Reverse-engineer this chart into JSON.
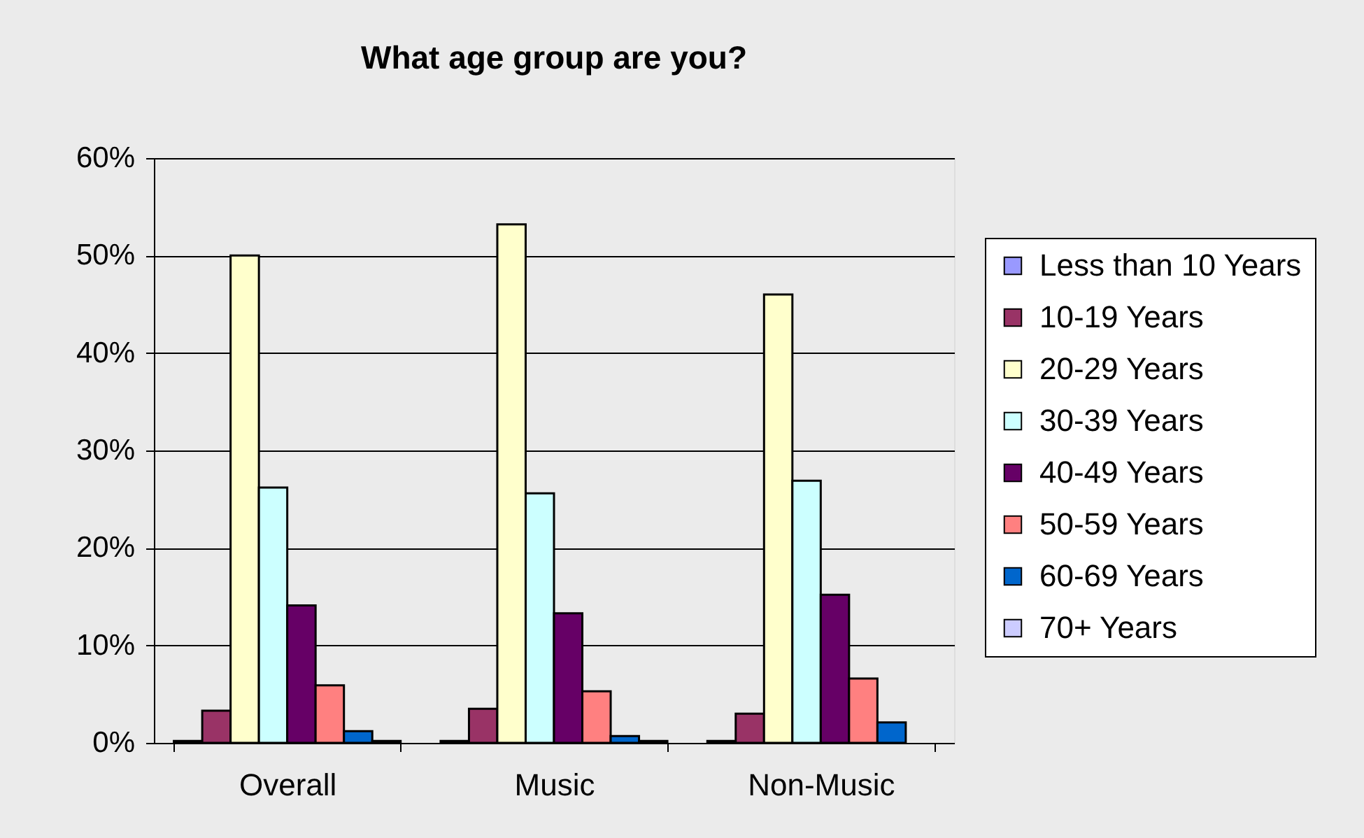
{
  "chart_data": {
    "type": "bar",
    "title": "What age group are you?",
    "categories": [
      "Overall",
      "Music",
      "Non-Music"
    ],
    "series": [
      {
        "name": "Less than 10 Years",
        "color": "#9999ff",
        "values": [
          0.2,
          0.2,
          0.2
        ]
      },
      {
        "name": "10-19 Years",
        "color": "#993366",
        "values": [
          3.3,
          3.5,
          3.0
        ]
      },
      {
        "name": "20-29 Years",
        "color": "#ffffcc",
        "values": [
          50.0,
          53.2,
          46.0
        ]
      },
      {
        "name": "30-39 Years",
        "color": "#ccffff",
        "values": [
          26.2,
          25.6,
          26.9
        ]
      },
      {
        "name": "40-49 Years",
        "color": "#660066",
        "values": [
          14.1,
          13.3,
          15.2
        ]
      },
      {
        "name": "50-59 Years",
        "color": "#ff8080",
        "values": [
          5.9,
          5.3,
          6.6
        ]
      },
      {
        "name": "60-69 Years",
        "color": "#0066cc",
        "values": [
          1.2,
          0.7,
          2.1
        ]
      },
      {
        "name": "70+   Years",
        "color": "#ccccff",
        "values": [
          0.2,
          0.2,
          null
        ]
      }
    ],
    "ylim": [
      0,
      60
    ],
    "yticks": [
      {
        "value": 0,
        "label": "0%"
      },
      {
        "value": 10,
        "label": "10%"
      },
      {
        "value": 20,
        "label": "20%"
      },
      {
        "value": 30,
        "label": "30%"
      },
      {
        "value": 40,
        "label": "40%"
      },
      {
        "value": 50,
        "label": "50%"
      },
      {
        "value": 60,
        "label": "60%"
      }
    ],
    "grid": "y",
    "legend": "right"
  }
}
